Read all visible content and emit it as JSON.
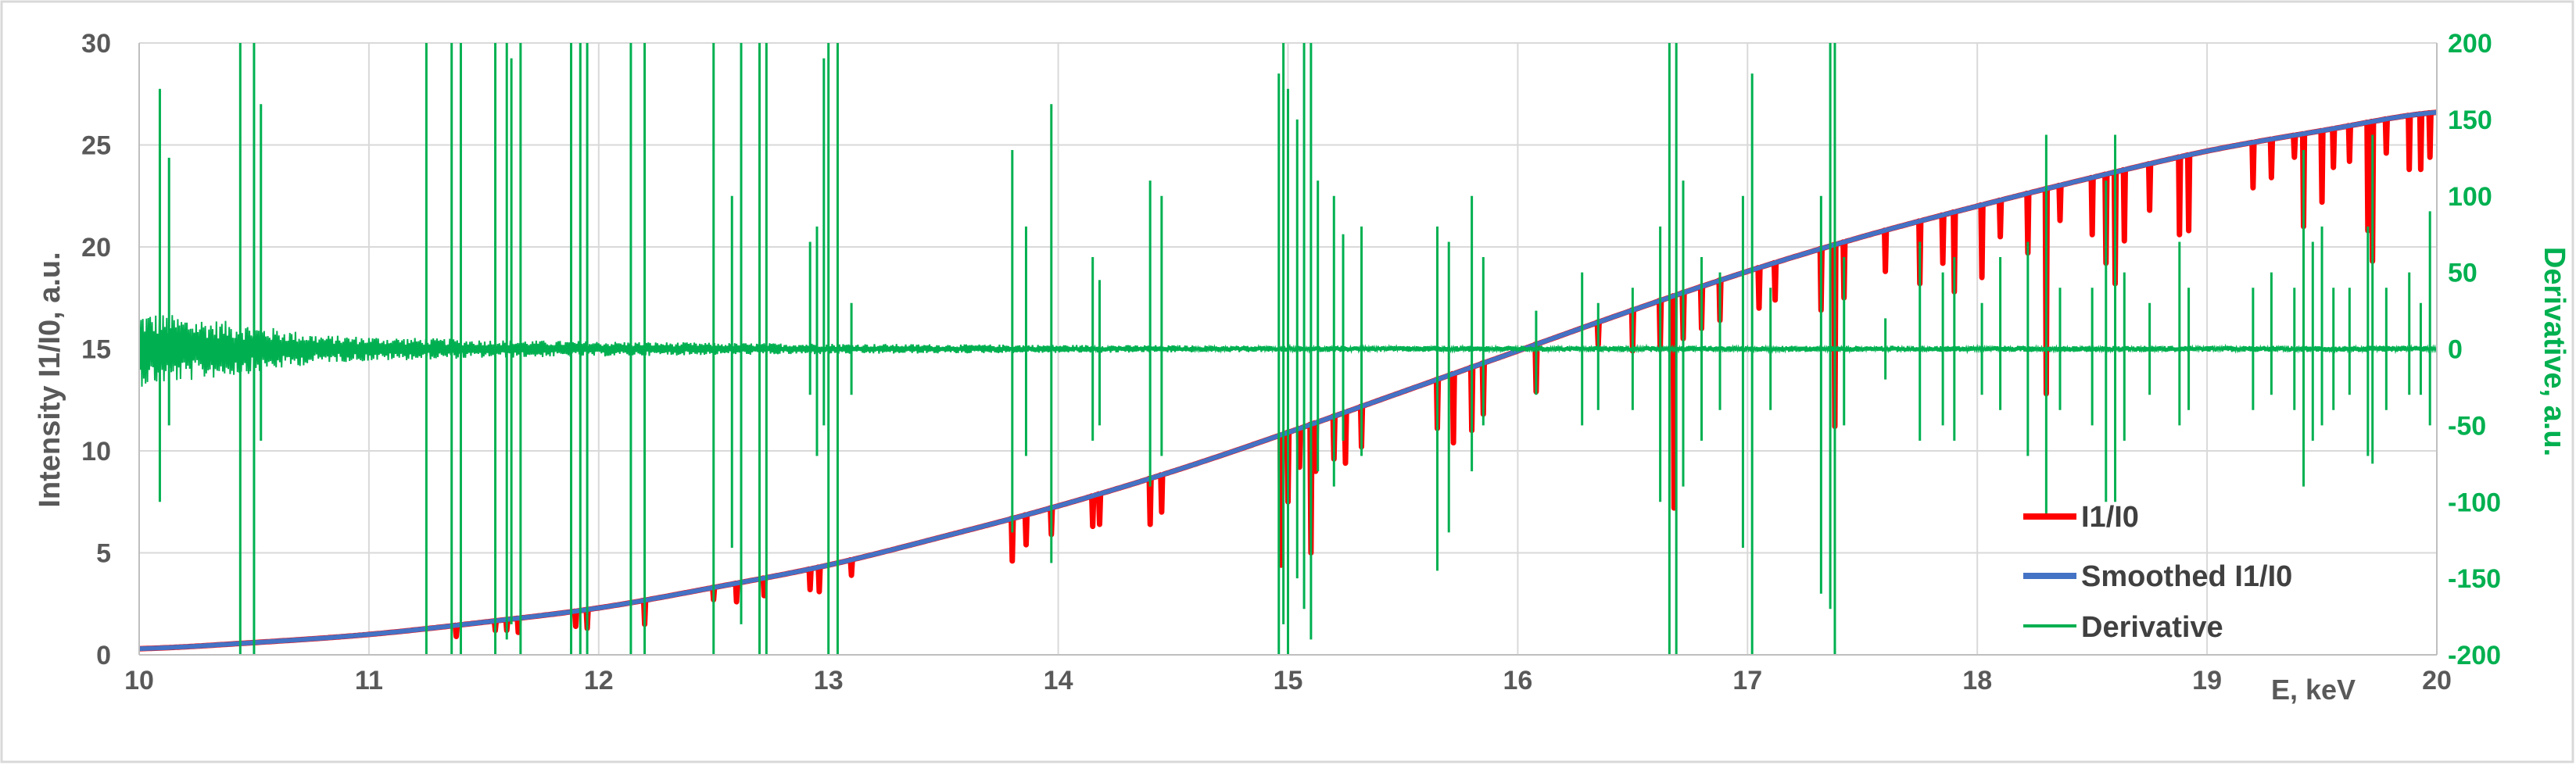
{
  "chart_data": {
    "type": "line",
    "title": "",
    "xlabel": "E, keV",
    "ylabel": "Intensity I1/I0, a.u.",
    "y2label": "Derivative, a.u.",
    "xlim": [
      10,
      20
    ],
    "ylim": [
      0,
      30
    ],
    "y2lim": [
      -200,
      200
    ],
    "x_ticks": [
      "10",
      "11",
      "12",
      "13",
      "14",
      "15",
      "16",
      "17",
      "18",
      "19",
      "20"
    ],
    "y_ticks": [
      "0",
      "5",
      "10",
      "15",
      "20",
      "25",
      "30"
    ],
    "y2_ticks": [
      "-200",
      "-150",
      "-100",
      "-50",
      "0",
      "50",
      "100",
      "150",
      "200"
    ],
    "grid": true,
    "legend_position": "bottom-right",
    "series": [
      {
        "name": "I1/I0",
        "color": "#ff0000",
        "axis": "left",
        "x": [
          10,
          10.5,
          11,
          11.5,
          12,
          12.5,
          13,
          13.5,
          14,
          14.5,
          15,
          15.5,
          16,
          16.5,
          17,
          17.5,
          18,
          18.5,
          19,
          19.5,
          20
        ],
        "y": [
          0.3,
          0.6,
          1.0,
          1.6,
          2.3,
          3.3,
          4.4,
          5.8,
          7.3,
          9.0,
          10.9,
          12.9,
          14.9,
          16.9,
          18.8,
          20.5,
          22.0,
          23.4,
          24.7,
          25.7,
          26.6
        ],
        "dips": [
          {
            "x": 11.38,
            "y": 0.9
          },
          {
            "x": 11.55,
            "y": 1.2
          },
          {
            "x": 11.6,
            "y": 1.2
          },
          {
            "x": 11.65,
            "y": 1.1
          },
          {
            "x": 11.9,
            "y": 1.4
          },
          {
            "x": 11.95,
            "y": 1.3
          },
          {
            "x": 12.2,
            "y": 1.5
          },
          {
            "x": 12.5,
            "y": 2.7
          },
          {
            "x": 12.6,
            "y": 2.6
          },
          {
            "x": 12.72,
            "y": 2.9
          },
          {
            "x": 12.92,
            "y": 3.2
          },
          {
            "x": 12.96,
            "y": 3.1
          },
          {
            "x": 13.1,
            "y": 3.9
          },
          {
            "x": 13.8,
            "y": 4.6
          },
          {
            "x": 13.86,
            "y": 5.4
          },
          {
            "x": 13.97,
            "y": 5.9
          },
          {
            "x": 14.15,
            "y": 6.3
          },
          {
            "x": 14.18,
            "y": 6.4
          },
          {
            "x": 14.4,
            "y": 6.4
          },
          {
            "x": 14.45,
            "y": 7.0
          },
          {
            "x": 14.97,
            "y": 4.4
          },
          {
            "x": 15.0,
            "y": 7.5
          },
          {
            "x": 15.05,
            "y": 9.2
          },
          {
            "x": 15.1,
            "y": 5.0
          },
          {
            "x": 15.12,
            "y": 9.0
          },
          {
            "x": 15.2,
            "y": 9.6
          },
          {
            "x": 15.25,
            "y": 9.4
          },
          {
            "x": 15.32,
            "y": 10.2
          },
          {
            "x": 15.65,
            "y": 11.1
          },
          {
            "x": 15.72,
            "y": 10.4
          },
          {
            "x": 15.8,
            "y": 11.0
          },
          {
            "x": 15.85,
            "y": 11.8
          },
          {
            "x": 16.08,
            "y": 12.9
          },
          {
            "x": 16.35,
            "y": 15.2
          },
          {
            "x": 16.5,
            "y": 14.9
          },
          {
            "x": 16.62,
            "y": 15.0
          },
          {
            "x": 16.68,
            "y": 7.2
          },
          {
            "x": 16.72,
            "y": 15.5
          },
          {
            "x": 16.8,
            "y": 16.0
          },
          {
            "x": 16.88,
            "y": 16.4
          },
          {
            "x": 17.05,
            "y": 17.0
          },
          {
            "x": 17.12,
            "y": 17.4
          },
          {
            "x": 17.32,
            "y": 16.9
          },
          {
            "x": 17.38,
            "y": 11.2
          },
          {
            "x": 17.42,
            "y": 17.5
          },
          {
            "x": 17.6,
            "y": 18.8
          },
          {
            "x": 17.75,
            "y": 18.2
          },
          {
            "x": 17.85,
            "y": 19.2
          },
          {
            "x": 17.9,
            "y": 17.8
          },
          {
            "x": 18.02,
            "y": 18.5
          },
          {
            "x": 18.1,
            "y": 20.5
          },
          {
            "x": 18.22,
            "y": 19.7
          },
          {
            "x": 18.3,
            "y": 12.8
          },
          {
            "x": 18.36,
            "y": 21.3
          },
          {
            "x": 18.5,
            "y": 20.6
          },
          {
            "x": 18.56,
            "y": 19.2
          },
          {
            "x": 18.6,
            "y": 18.2
          },
          {
            "x": 18.64,
            "y": 20.3
          },
          {
            "x": 18.75,
            "y": 21.8
          },
          {
            "x": 18.88,
            "y": 20.6
          },
          {
            "x": 18.92,
            "y": 20.8
          },
          {
            "x": 19.2,
            "y": 22.9
          },
          {
            "x": 19.28,
            "y": 23.4
          },
          {
            "x": 19.38,
            "y": 24.4
          },
          {
            "x": 19.42,
            "y": 21.0
          },
          {
            "x": 19.5,
            "y": 22.2
          },
          {
            "x": 19.55,
            "y": 23.9
          },
          {
            "x": 19.62,
            "y": 24.2
          },
          {
            "x": 19.7,
            "y": 20.8
          },
          {
            "x": 19.72,
            "y": 19.3
          },
          {
            "x": 19.78,
            "y": 24.6
          },
          {
            "x": 19.88,
            "y": 23.8
          },
          {
            "x": 19.93,
            "y": 23.8
          },
          {
            "x": 19.97,
            "y": 24.4
          }
        ]
      },
      {
        "name": "Smoothed I1/I0",
        "color": "#4472c4",
        "axis": "left",
        "x": [
          10,
          10.5,
          11,
          11.5,
          12,
          12.5,
          13,
          13.5,
          14,
          14.5,
          15,
          15.5,
          16,
          16.5,
          17,
          17.5,
          18,
          18.5,
          19,
          19.5,
          20
        ],
        "y": [
          0.3,
          0.6,
          1.0,
          1.6,
          2.3,
          3.3,
          4.4,
          5.8,
          7.3,
          9.0,
          10.9,
          12.9,
          14.9,
          16.9,
          18.8,
          20.5,
          22.0,
          23.4,
          24.7,
          25.7,
          26.6
        ]
      },
      {
        "name": "Derivative",
        "color": "#00b050",
        "axis": "right",
        "baseline": 0,
        "noise": [
          {
            "x": 10.0,
            "amp": 25
          },
          {
            "x": 10.4,
            "amp": 18
          },
          {
            "x": 10.8,
            "amp": 9
          },
          {
            "x": 11.5,
            "amp": 6
          },
          {
            "x": 12.5,
            "amp": 4
          },
          {
            "x": 13.5,
            "amp": 3
          },
          {
            "x": 15.0,
            "amp": 2
          },
          {
            "x": 20.0,
            "amp": 2
          }
        ],
        "spikes": [
          {
            "x": 10.09,
            "hi": 170,
            "lo": -100
          },
          {
            "x": 10.13,
            "hi": 125,
            "lo": -50
          },
          {
            "x": 10.44,
            "hi": 200,
            "lo": -200
          },
          {
            "x": 10.5,
            "hi": 200,
            "lo": -200
          },
          {
            "x": 10.53,
            "hi": 160,
            "lo": -60
          },
          {
            "x": 11.25,
            "hi": 200,
            "lo": -200
          },
          {
            "x": 11.36,
            "hi": 200,
            "lo": -200
          },
          {
            "x": 11.4,
            "hi": 200,
            "lo": -200
          },
          {
            "x": 11.55,
            "hi": 200,
            "lo": -200
          },
          {
            "x": 11.6,
            "hi": 200,
            "lo": -190
          },
          {
            "x": 11.62,
            "hi": 190,
            "lo": -180
          },
          {
            "x": 11.66,
            "hi": 200,
            "lo": -200
          },
          {
            "x": 11.88,
            "hi": 200,
            "lo": -200
          },
          {
            "x": 11.92,
            "hi": 200,
            "lo": -200
          },
          {
            "x": 11.95,
            "hi": 200,
            "lo": -200
          },
          {
            "x": 12.14,
            "hi": 200,
            "lo": -200
          },
          {
            "x": 12.2,
            "hi": 200,
            "lo": -200
          },
          {
            "x": 12.5,
            "hi": 200,
            "lo": -200
          },
          {
            "x": 12.58,
            "hi": 100,
            "lo": -130
          },
          {
            "x": 12.62,
            "hi": 200,
            "lo": -180
          },
          {
            "x": 12.7,
            "hi": 200,
            "lo": -200
          },
          {
            "x": 12.73,
            "hi": 200,
            "lo": -200
          },
          {
            "x": 12.92,
            "hi": 70,
            "lo": -30
          },
          {
            "x": 12.95,
            "hi": 80,
            "lo": -70
          },
          {
            "x": 12.98,
            "hi": 190,
            "lo": -50
          },
          {
            "x": 13.0,
            "hi": 200,
            "lo": -200
          },
          {
            "x": 13.04,
            "hi": 200,
            "lo": -200
          },
          {
            "x": 13.1,
            "hi": 30,
            "lo": -30
          },
          {
            "x": 13.8,
            "hi": 130,
            "lo": -120
          },
          {
            "x": 13.86,
            "hi": 80,
            "lo": -70
          },
          {
            "x": 13.97,
            "hi": 160,
            "lo": -140
          },
          {
            "x": 14.15,
            "hi": 60,
            "lo": -60
          },
          {
            "x": 14.18,
            "hi": 45,
            "lo": -50
          },
          {
            "x": 14.4,
            "hi": 110,
            "lo": -90
          },
          {
            "x": 14.45,
            "hi": 100,
            "lo": -70
          },
          {
            "x": 14.96,
            "hi": 180,
            "lo": -200
          },
          {
            "x": 14.98,
            "hi": 200,
            "lo": -180
          },
          {
            "x": 15.0,
            "hi": 170,
            "lo": -200
          },
          {
            "x": 15.04,
            "hi": 150,
            "lo": -150
          },
          {
            "x": 15.07,
            "hi": 200,
            "lo": -170
          },
          {
            "x": 15.1,
            "hi": 200,
            "lo": -190
          },
          {
            "x": 15.13,
            "hi": 110,
            "lo": -80
          },
          {
            "x": 15.2,
            "hi": 100,
            "lo": -90
          },
          {
            "x": 15.24,
            "hi": 75,
            "lo": -60
          },
          {
            "x": 15.32,
            "hi": 80,
            "lo": -70
          },
          {
            "x": 15.65,
            "hi": 80,
            "lo": -145
          },
          {
            "x": 15.7,
            "hi": 70,
            "lo": -120
          },
          {
            "x": 15.8,
            "hi": 100,
            "lo": -80
          },
          {
            "x": 15.85,
            "hi": 60,
            "lo": -50
          },
          {
            "x": 16.08,
            "hi": 25,
            "lo": -30
          },
          {
            "x": 16.28,
            "hi": 50,
            "lo": -50
          },
          {
            "x": 16.35,
            "hi": 30,
            "lo": -40
          },
          {
            "x": 16.5,
            "hi": 40,
            "lo": -40
          },
          {
            "x": 16.62,
            "hi": 80,
            "lo": -100
          },
          {
            "x": 16.66,
            "hi": 200,
            "lo": -200
          },
          {
            "x": 16.69,
            "hi": 200,
            "lo": -200
          },
          {
            "x": 16.72,
            "hi": 110,
            "lo": -90
          },
          {
            "x": 16.8,
            "hi": 60,
            "lo": -60
          },
          {
            "x": 16.88,
            "hi": 50,
            "lo": -40
          },
          {
            "x": 16.98,
            "hi": 100,
            "lo": -130
          },
          {
            "x": 17.02,
            "hi": 180,
            "lo": -200
          },
          {
            "x": 17.1,
            "hi": 40,
            "lo": -40
          },
          {
            "x": 17.32,
            "hi": 100,
            "lo": -160
          },
          {
            "x": 17.36,
            "hi": 200,
            "lo": -170
          },
          {
            "x": 17.38,
            "hi": 200,
            "lo": -200
          },
          {
            "x": 17.42,
            "hi": 60,
            "lo": -50
          },
          {
            "x": 17.6,
            "hi": 20,
            "lo": -20
          },
          {
            "x": 17.75,
            "hi": 70,
            "lo": -60
          },
          {
            "x": 17.85,
            "hi": 50,
            "lo": -50
          },
          {
            "x": 17.9,
            "hi": 60,
            "lo": -60
          },
          {
            "x": 18.02,
            "hi": 30,
            "lo": -30
          },
          {
            "x": 18.1,
            "hi": 60,
            "lo": -40
          },
          {
            "x": 18.22,
            "hi": 70,
            "lo": -70
          },
          {
            "x": 18.3,
            "hi": 140,
            "lo": -110
          },
          {
            "x": 18.36,
            "hi": 40,
            "lo": -40
          },
          {
            "x": 18.5,
            "hi": 40,
            "lo": -50
          },
          {
            "x": 18.56,
            "hi": 110,
            "lo": -100
          },
          {
            "x": 18.6,
            "hi": 140,
            "lo": -100
          },
          {
            "x": 18.64,
            "hi": 50,
            "lo": -60
          },
          {
            "x": 18.75,
            "hi": 30,
            "lo": -30
          },
          {
            "x": 18.88,
            "hi": 70,
            "lo": -50
          },
          {
            "x": 18.92,
            "hi": 40,
            "lo": -40
          },
          {
            "x": 19.2,
            "hi": 40,
            "lo": -40
          },
          {
            "x": 19.28,
            "hi": 50,
            "lo": -30
          },
          {
            "x": 19.38,
            "hi": 40,
            "lo": -40
          },
          {
            "x": 19.42,
            "hi": 130,
            "lo": -90
          },
          {
            "x": 19.46,
            "hi": 70,
            "lo": -60
          },
          {
            "x": 19.5,
            "hi": 80,
            "lo": -50
          },
          {
            "x": 19.55,
            "hi": 40,
            "lo": -40
          },
          {
            "x": 19.62,
            "hi": 40,
            "lo": -30
          },
          {
            "x": 19.7,
            "hi": 80,
            "lo": -70
          },
          {
            "x": 19.72,
            "hi": 140,
            "lo": -75
          },
          {
            "x": 19.78,
            "hi": 40,
            "lo": -40
          },
          {
            "x": 19.88,
            "hi": 50,
            "lo": -30
          },
          {
            "x": 19.93,
            "hi": 30,
            "lo": -30
          },
          {
            "x": 19.97,
            "hi": 90,
            "lo": -50
          }
        ]
      }
    ]
  }
}
